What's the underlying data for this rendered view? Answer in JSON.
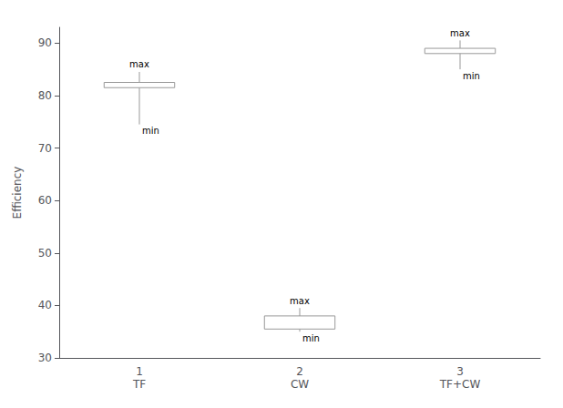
{
  "chart_data": {
    "type": "box",
    "categories": [
      "1\nTF",
      "2\nCW",
      "3\nTF+CW"
    ],
    "whisker_bottom": [
      74.5,
      35.0,
      85.0
    ],
    "box_bottom": [
      81.5,
      35.5,
      88.0
    ],
    "box_top": [
      82.5,
      38.0,
      89.0
    ],
    "whisker_top": [
      84.5,
      39.5,
      90.5
    ],
    "annotations": {
      "whisker_top": "max",
      "whisker_bottom": "min"
    },
    "ylabel": "Efficiency",
    "ylim": [
      30,
      93
    ],
    "yticks": [
      30,
      40,
      50,
      60,
      70,
      80,
      90
    ],
    "grid": false,
    "color": "#999999"
  }
}
